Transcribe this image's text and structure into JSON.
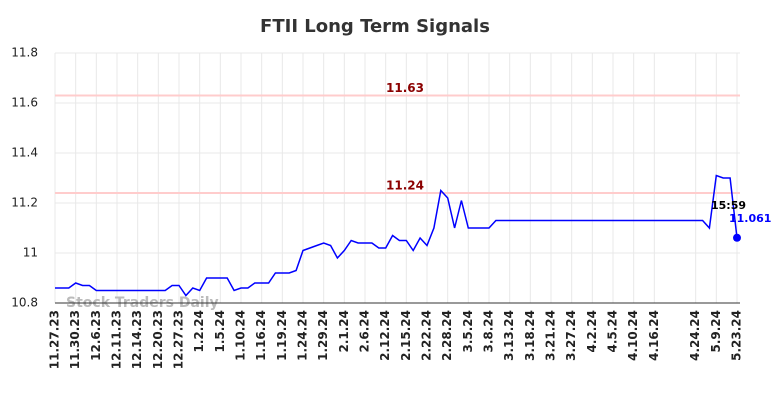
{
  "chart_data": {
    "type": "line",
    "title": "FTII Long Term Signals",
    "watermark": "Stock Traders Daily",
    "last_time": "15:59",
    "categories": [
      "11.27.23",
      null,
      null,
      "11.30.23",
      null,
      null,
      "12.6.23",
      null,
      null,
      "12.11.23",
      null,
      null,
      "12.14.23",
      null,
      null,
      "12.20.23",
      null,
      null,
      "12.27.23",
      null,
      null,
      "1.2.24",
      null,
      null,
      "1.5.24",
      null,
      null,
      "1.10.24",
      null,
      null,
      "1.16.24",
      null,
      null,
      "1.19.24",
      null,
      null,
      "1.24.24",
      null,
      null,
      "1.29.24",
      null,
      null,
      "2.1.24",
      null,
      null,
      "2.6.24",
      null,
      null,
      "2.12.24",
      null,
      null,
      "2.15.24",
      null,
      null,
      "2.22.24",
      null,
      null,
      "2.28.24",
      null,
      null,
      "3.5.24",
      null,
      null,
      "3.8.24",
      null,
      null,
      "3.13.24",
      null,
      null,
      "3.18.24",
      null,
      null,
      "3.21.24",
      null,
      null,
      "3.27.24",
      null,
      null,
      "4.2.24",
      null,
      null,
      "4.5.24",
      null,
      null,
      "4.10.24",
      null,
      null,
      "4.16.24",
      null,
      null,
      null,
      null,
      null,
      "4.24.24",
      null,
      null,
      "5.9.24",
      null,
      null,
      "5.23.24"
    ],
    "values": [
      10.86,
      10.86,
      10.86,
      10.88,
      10.87,
      10.87,
      10.85,
      10.85,
      10.85,
      10.85,
      10.85,
      10.85,
      10.85,
      10.85,
      10.85,
      10.85,
      10.85,
      10.87,
      10.87,
      10.83,
      10.86,
      10.85,
      10.9,
      10.9,
      10.9,
      10.9,
      10.85,
      10.86,
      10.86,
      10.88,
      10.88,
      10.88,
      10.92,
      10.92,
      10.92,
      10.93,
      11.01,
      11.02,
      11.03,
      11.04,
      11.03,
      10.98,
      11.01,
      11.05,
      11.04,
      11.04,
      11.04,
      11.02,
      11.02,
      11.07,
      11.05,
      11.05,
      11.01,
      11.06,
      11.03,
      11.1,
      11.25,
      11.22,
      11.1,
      11.21,
      11.1,
      11.1,
      11.1,
      11.1,
      11.13,
      11.13,
      11.13,
      11.13,
      11.13,
      11.13,
      11.13,
      11.13,
      11.13,
      11.13,
      11.13,
      11.13,
      11.13,
      11.13,
      11.13,
      11.13,
      11.13,
      11.13,
      11.13,
      11.13,
      11.13,
      11.13,
      11.13,
      11.13,
      11.13,
      11.13,
      11.13,
      11.13,
      11.13,
      11.13,
      11.13,
      11.1,
      11.31,
      11.3,
      11.3,
      11.061
    ],
    "color": "#0000ff",
    "hlines": [
      {
        "value": 11.63,
        "color": "#ffcccc",
        "label_color": "#8b0000"
      },
      {
        "value": 11.24,
        "color": "#ffcccc",
        "label_color": "#8b0000"
      }
    ],
    "ylim": [
      10.8,
      11.8
    ],
    "yticks": [
      10.8,
      11,
      11.2,
      11.4,
      11.6,
      11.8
    ],
    "grid": true
  }
}
